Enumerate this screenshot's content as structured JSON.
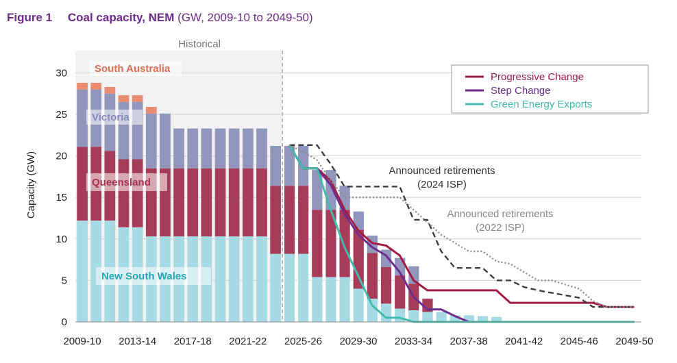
{
  "figure": {
    "number": "Figure 1",
    "title": "Coal capacity, NEM",
    "subtitle": "(GW, 2009-10 to 2049-50)"
  },
  "colors": {
    "nsw": "#a6dbe5",
    "qld": "#a63c5a",
    "vic": "#9295bc",
    "sa": "#e98c71",
    "nsw_label": "#2aa5b5",
    "qld_label": "#a7354f",
    "vic_label": "#8588ba",
    "sa_label": "#e06e52",
    "progressive": "#a31d43",
    "step": "#6e2d8c",
    "green": "#3fbcaa",
    "ann2024": "#3d3d3d",
    "ann2022": "#8c8c8c",
    "historical_bg": "#f2f2f2"
  },
  "chart_data": {
    "type": "bar",
    "title": "",
    "ylabel": "Capacity (GW)",
    "ylim": [
      0,
      33
    ],
    "yticks": [
      0,
      5,
      10,
      15,
      20,
      25,
      30
    ],
    "xtick_labels": [
      "2009-10",
      "2013-14",
      "2017-18",
      "2021-22",
      "2025-26",
      "2029-30",
      "2033-34",
      "2037-38",
      "2041-42",
      "2045-46",
      "2049-50"
    ],
    "historical_label": "Historical",
    "historical_years": 15,
    "region_labels": {
      "sa": "South Australia",
      "vic": "Victoria",
      "qld": "Queensland",
      "nsw": "New South Wales"
    },
    "stacked_series": [
      {
        "key": "nsw",
        "name": "New South Wales",
        "values": [
          12.2,
          12.2,
          12.2,
          11.4,
          11.4,
          10.3,
          10.3,
          10.3,
          10.3,
          10.3,
          10.3,
          10.3,
          10.3,
          10.3,
          8.2,
          8.2,
          8.2,
          5.4,
          5.4,
          5.4,
          4.0,
          2.8,
          2.2,
          1.6,
          1.4,
          1.2,
          1.2,
          0.8,
          0.8,
          0.7,
          0.6
        ]
      },
      {
        "key": "qld",
        "name": "Queensland",
        "values": [
          8.9,
          8.9,
          8.4,
          8.2,
          8.2,
          8.2,
          8.2,
          8.2,
          8.2,
          8.2,
          8.2,
          8.2,
          8.2,
          8.2,
          8.2,
          8.2,
          8.2,
          8.1,
          8.1,
          8.1,
          7.1,
          5.5,
          4.4,
          4.0,
          3.2,
          1.6,
          0.0,
          0.0,
          0.0,
          0.0,
          0.0
        ]
      },
      {
        "key": "vic",
        "name": "Victoria",
        "values": [
          6.9,
          6.9,
          6.9,
          6.9,
          6.9,
          6.6,
          6.6,
          4.8,
          4.8,
          4.8,
          4.8,
          4.8,
          4.8,
          4.8,
          4.8,
          4.8,
          4.8,
          4.8,
          4.8,
          2.9,
          2.2,
          2.1,
          2.1,
          2.1,
          2.1,
          0.0,
          0.0,
          0.0,
          0.0,
          0.0,
          0.0
        ]
      },
      {
        "key": "sa",
        "name": "South Australia",
        "values": [
          0.8,
          0.8,
          0.8,
          0.8,
          0.8,
          0.8,
          0.0,
          0.0,
          0.0,
          0.0,
          0.0,
          0.0,
          0.0,
          0.0,
          0.0,
          0.0,
          0.0,
          0.0,
          0.0,
          0.0,
          0.0,
          0.0,
          0.0,
          0.0,
          0.0,
          0.0,
          0.0,
          0.0,
          0.0,
          0.0,
          0.0
        ]
      }
    ],
    "line_series": [
      {
        "key": "progressive",
        "name": "Progressive Change",
        "style": "solid",
        "points": [
          [
            15,
            21.3
          ],
          [
            16,
            18.5
          ],
          [
            17,
            18.5
          ],
          [
            18,
            17.0
          ],
          [
            19,
            13.5
          ],
          [
            20,
            11.0
          ],
          [
            21,
            9.5
          ],
          [
            22,
            9.2
          ],
          [
            23,
            8.0
          ],
          [
            24,
            5.0
          ],
          [
            25,
            3.8
          ],
          [
            26,
            3.8
          ],
          [
            27,
            3.8
          ],
          [
            28,
            3.8
          ],
          [
            29,
            3.8
          ],
          [
            30,
            3.8
          ],
          [
            31,
            2.3
          ],
          [
            32,
            2.3
          ],
          [
            33,
            2.3
          ],
          [
            34,
            2.3
          ],
          [
            35,
            2.3
          ],
          [
            36,
            2.3
          ],
          [
            37,
            2.3
          ],
          [
            38,
            1.8
          ],
          [
            39,
            1.8
          ],
          [
            40,
            1.8
          ]
        ]
      },
      {
        "key": "step",
        "name": "Step Change",
        "style": "solid",
        "points": [
          [
            15,
            21.3
          ],
          [
            16,
            18.5
          ],
          [
            17,
            18.5
          ],
          [
            18,
            16.5
          ],
          [
            19,
            13.0
          ],
          [
            20,
            10.5
          ],
          [
            21,
            9.0
          ],
          [
            22,
            8.0
          ],
          [
            23,
            6.0
          ],
          [
            24,
            3.0
          ],
          [
            25,
            1.5
          ],
          [
            26,
            1.5
          ],
          [
            27,
            0.7
          ],
          [
            28,
            0.0
          ],
          [
            29,
            0.0
          ],
          [
            40,
            0.0
          ]
        ]
      },
      {
        "key": "green",
        "name": "Green Energy Exports",
        "style": "solid",
        "points": [
          [
            15,
            21.3
          ],
          [
            16,
            18.5
          ],
          [
            17,
            18.5
          ],
          [
            18,
            13.5
          ],
          [
            19,
            9.0
          ],
          [
            20,
            5.5
          ],
          [
            21,
            2.0
          ],
          [
            22,
            0.5
          ],
          [
            23,
            0.5
          ],
          [
            24,
            0.0
          ],
          [
            40,
            0.0
          ]
        ]
      },
      {
        "key": "ann2024",
        "name": "Announced retirements (2024 ISP)",
        "style": "dashed",
        "points": [
          [
            15,
            21.3
          ],
          [
            16,
            21.3
          ],
          [
            17,
            21.3
          ],
          [
            18,
            19.0
          ],
          [
            19,
            16.3
          ],
          [
            20,
            16.3
          ],
          [
            21,
            16.3
          ],
          [
            22,
            16.3
          ],
          [
            23,
            16.3
          ],
          [
            24,
            12.3
          ],
          [
            25,
            12.3
          ],
          [
            26,
            8.5
          ],
          [
            27,
            6.5
          ],
          [
            28,
            6.5
          ],
          [
            29,
            6.5
          ],
          [
            30,
            5.0
          ],
          [
            31,
            5.0
          ],
          [
            32,
            4.2
          ],
          [
            33,
            3.8
          ],
          [
            34,
            3.5
          ],
          [
            35,
            3.2
          ],
          [
            36,
            2.9
          ],
          [
            37,
            1.8
          ],
          [
            38,
            1.8
          ],
          [
            39,
            1.8
          ],
          [
            40,
            1.8
          ]
        ]
      },
      {
        "key": "ann2022",
        "name": "Announced retirements (2022 ISP)",
        "style": "dotted",
        "points": [
          [
            15,
            21.3
          ],
          [
            16,
            20.5
          ],
          [
            17,
            19.5
          ],
          [
            18,
            17.0
          ],
          [
            19,
            15.0
          ],
          [
            20,
            15.0
          ],
          [
            21,
            15.0
          ],
          [
            22,
            15.0
          ],
          [
            23,
            15.0
          ],
          [
            24,
            13.5
          ],
          [
            25,
            12.0
          ],
          [
            26,
            10.5
          ],
          [
            27,
            9.5
          ],
          [
            28,
            8.5
          ],
          [
            29,
            8.5
          ],
          [
            30,
            7.3
          ],
          [
            31,
            7.0
          ],
          [
            32,
            6.0
          ],
          [
            33,
            5.0
          ],
          [
            34,
            5.0
          ],
          [
            35,
            4.5
          ],
          [
            36,
            4.0
          ],
          [
            37,
            2.5
          ],
          [
            38,
            1.8
          ],
          [
            39,
            1.8
          ],
          [
            40,
            1.8
          ]
        ]
      }
    ],
    "legend": {
      "placement": "top-right",
      "entries": [
        {
          "key": "progressive",
          "label": "Progressive Change"
        },
        {
          "key": "step",
          "label": "Step Change"
        },
        {
          "key": "green",
          "label": "Green Energy Exports"
        }
      ]
    },
    "annotations": [
      {
        "key": "ann2024",
        "line1": "Announced retirements",
        "line2": "(2024 ISP)"
      },
      {
        "key": "ann2022",
        "line1": "Announced retirements",
        "line2": "(2022 ISP)"
      }
    ],
    "grid": "horizontal"
  }
}
